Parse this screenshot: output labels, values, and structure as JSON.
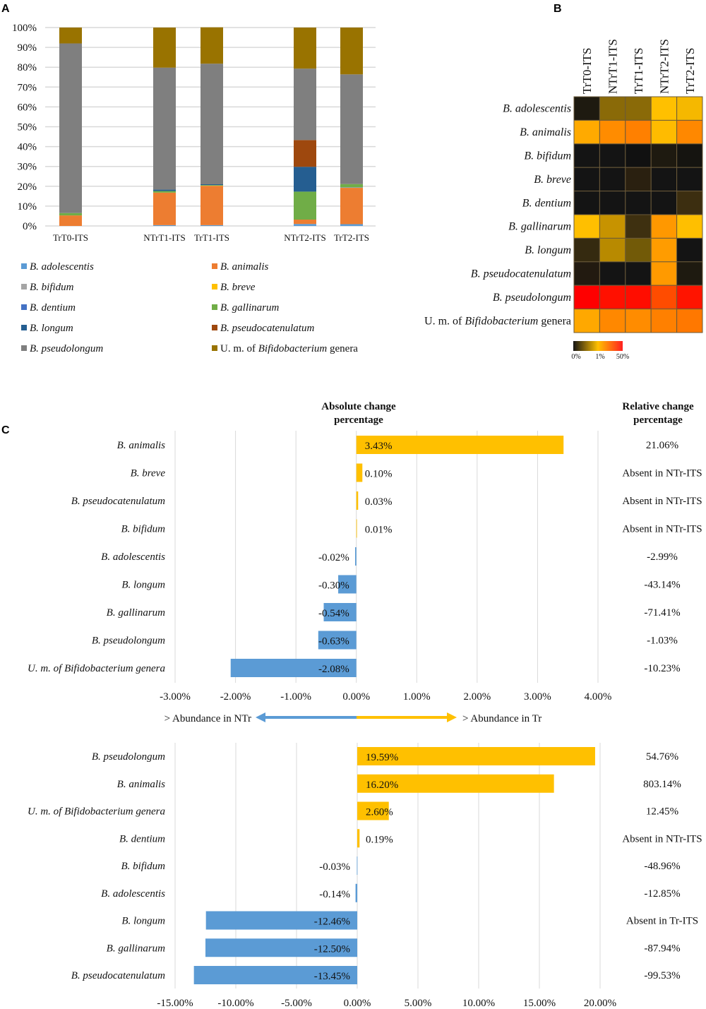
{
  "panel_labels": {
    "a": "A",
    "b": "B",
    "c": "C"
  },
  "chart_data": [
    {
      "id": "A",
      "type": "bar",
      "stacked": true,
      "categories": [
        "TrT0-ITS",
        "NTrT1-ITS",
        "TrT1-ITS",
        "NTrT2-ITS",
        "TrT2-ITS"
      ],
      "ylim": [
        0,
        100
      ],
      "yticks": [
        "0%",
        "10%",
        "20%",
        "30%",
        "40%",
        "50%",
        "60%",
        "70%",
        "80%",
        "90%",
        "100%"
      ],
      "grid": true,
      "legend_position": "bottom",
      "series": [
        {
          "name": "B. adolescentis",
          "color": "#5B9BD5",
          "values": [
            0,
            0.4,
            0.4,
            1.0,
            0.9
          ]
        },
        {
          "name": "B. animalis",
          "color": "#ED7D31",
          "values": [
            5.3,
            16.4,
            19.8,
            2.2,
            18.3
          ]
        },
        {
          "name": "B. bifidum",
          "color": "#A5A5A5",
          "values": [
            0,
            0,
            0,
            0,
            0
          ]
        },
        {
          "name": "B. breve",
          "color": "#FFC000",
          "values": [
            0,
            0,
            0.1,
            0,
            0.1
          ]
        },
        {
          "name": "B. dentium",
          "color": "#4472C4",
          "values": [
            0,
            0,
            0,
            0,
            0.2
          ]
        },
        {
          "name": "B. gallinarum",
          "color": "#70AD47",
          "values": [
            1.2,
            0.8,
            0.3,
            14.1,
            1.6
          ]
        },
        {
          "name": "B. longum",
          "color": "#255E91",
          "values": [
            0,
            0.7,
            0.4,
            12.5,
            0
          ]
        },
        {
          "name": "B. pseudocatenulatum",
          "color": "#9E480E",
          "values": [
            0,
            0,
            0,
            13.5,
            0
          ]
        },
        {
          "name": "B. pseudolongum",
          "color": "#7F7F7F",
          "values": [
            85.5,
            61.5,
            60.8,
            36.0,
            55.3
          ]
        },
        {
          "name": "U. m. of Bifidobacterium genera",
          "color": "#997300",
          "values": [
            8.0,
            20.2,
            18.3,
            20.7,
            23.6
          ]
        }
      ]
    },
    {
      "id": "B",
      "type": "heatmap",
      "columns": [
        "TrT0-ITS",
        "NTrT1-ITS",
        "TrT1-ITS",
        "NTrT2-ITS",
        "TrT2-ITS"
      ],
      "rows": [
        "B. adolescentis",
        "B. animalis",
        "B. bifidum",
        "B. breve",
        "B. dentium",
        "B. gallinarum",
        "B. longum",
        "B. pseudocatenulatum",
        "B. pseudolongum",
        "U. m. of Bifidobacterium genera"
      ],
      "cell_colors": [
        [
          "#1e1a10",
          "#8a6a08",
          "#8a6a08",
          "#ffc000",
          "#f5b800"
        ],
        [
          "#ffaa00",
          "#ff8c00",
          "#ff8000",
          "#ffbb00",
          "#ff8800"
        ],
        [
          "#141414",
          "#141414",
          "#111111",
          "#1e1a10",
          "#151410"
        ],
        [
          "#141414",
          "#141414",
          "#2a2010",
          "#141414",
          "#141414"
        ],
        [
          "#141414",
          "#141414",
          "#141414",
          "#141414",
          "#3c2e10"
        ],
        [
          "#ffbf00",
          "#c79300",
          "#3e3010",
          "#ff9800",
          "#ffbf00"
        ],
        [
          "#352a10",
          "#b88a00",
          "#725a08",
          "#ff9c00",
          "#141414"
        ],
        [
          "#221a10",
          "#141414",
          "#141414",
          "#ff9a00",
          "#1e1a10"
        ],
        [
          "#ff0000",
          "#ff1000",
          "#ff0d00",
          "#ff4c00",
          "#ff1400"
        ],
        [
          "#ffa800",
          "#ff8800",
          "#ff8c00",
          "#ff8000",
          "#ff7800"
        ]
      ],
      "colorbar": {
        "labels": [
          "0%",
          "1%",
          "50%"
        ],
        "colors": [
          "#141414",
          "#ffc000",
          "#ff2020"
        ]
      }
    },
    {
      "id": "C1",
      "type": "bar",
      "orientation": "horizontal",
      "title": "Absolute change percentage",
      "relative_title": "Relative change percentage",
      "categories": [
        "B. animalis",
        "B. breve",
        "B. pseudocatenulatum",
        "B. bifidum",
        "B. adolescentis",
        "B. longum",
        "B. gallinarum",
        "B. pseudolongum",
        "U. m. of Bifidobacterium genera"
      ],
      "values": [
        3.43,
        0.1,
        0.03,
        0.01,
        -0.02,
        -0.3,
        -0.54,
        -0.63,
        -2.08
      ],
      "labels": [
        "3.43%",
        "0.10%",
        "0.03%",
        "0.01%",
        "-0.02%",
        "-0.30%",
        "-0.54%",
        "-0.63%",
        "-2.08%"
      ],
      "relative": [
        "21.06%",
        "Absent in NTr-ITS",
        "Absent in NTr-ITS",
        "Absent in NTr-ITS",
        "-2.99%",
        "-43.14%",
        "-71.41%",
        "-1.03%",
        "-10.23%"
      ],
      "xlim": [
        -3,
        4
      ],
      "xticks": [
        "-3.00%",
        "-2.00%",
        "-1.00%",
        "0.00%",
        "1.00%",
        "2.00%",
        "3.00%",
        "4.00%"
      ],
      "annotation_left": "> Abundance in NTr",
      "annotation_right": "> Abundance in Tr",
      "pos_color": "#FFC000",
      "neg_color": "#5B9BD5"
    },
    {
      "id": "C2",
      "type": "bar",
      "orientation": "horizontal",
      "categories": [
        "B. pseudolongum",
        "B. animalis",
        "U. m. of Bifidobacterium genera",
        "B. dentium",
        "B. bifidum",
        "B. adolescentis",
        "B. longum",
        "B. gallinarum",
        "B. pseudocatenulatum"
      ],
      "values": [
        19.59,
        16.2,
        2.6,
        0.19,
        -0.03,
        -0.14,
        -12.46,
        -12.5,
        -13.45
      ],
      "labels": [
        "19.59%",
        "16.20%",
        "2.60%",
        "0.19%",
        "-0.03%",
        "-0.14%",
        "-12.46%",
        "-12.50%",
        "-13.45%"
      ],
      "relative": [
        "54.76%",
        "803.14%",
        "12.45%",
        "Absent in NTr-ITS",
        "-48.96%",
        "-12.85%",
        "Absent in Tr-ITS",
        "-87.94%",
        "-99.53%"
      ],
      "xlim": [
        -15,
        20
      ],
      "xticks": [
        "-15.00%",
        "-10.00%",
        "-5.00%",
        "0.00%",
        "5.00%",
        "10.00%",
        "15.00%",
        "20.00%"
      ],
      "pos_color": "#FFC000",
      "neg_color": "#5B9BD5"
    }
  ]
}
